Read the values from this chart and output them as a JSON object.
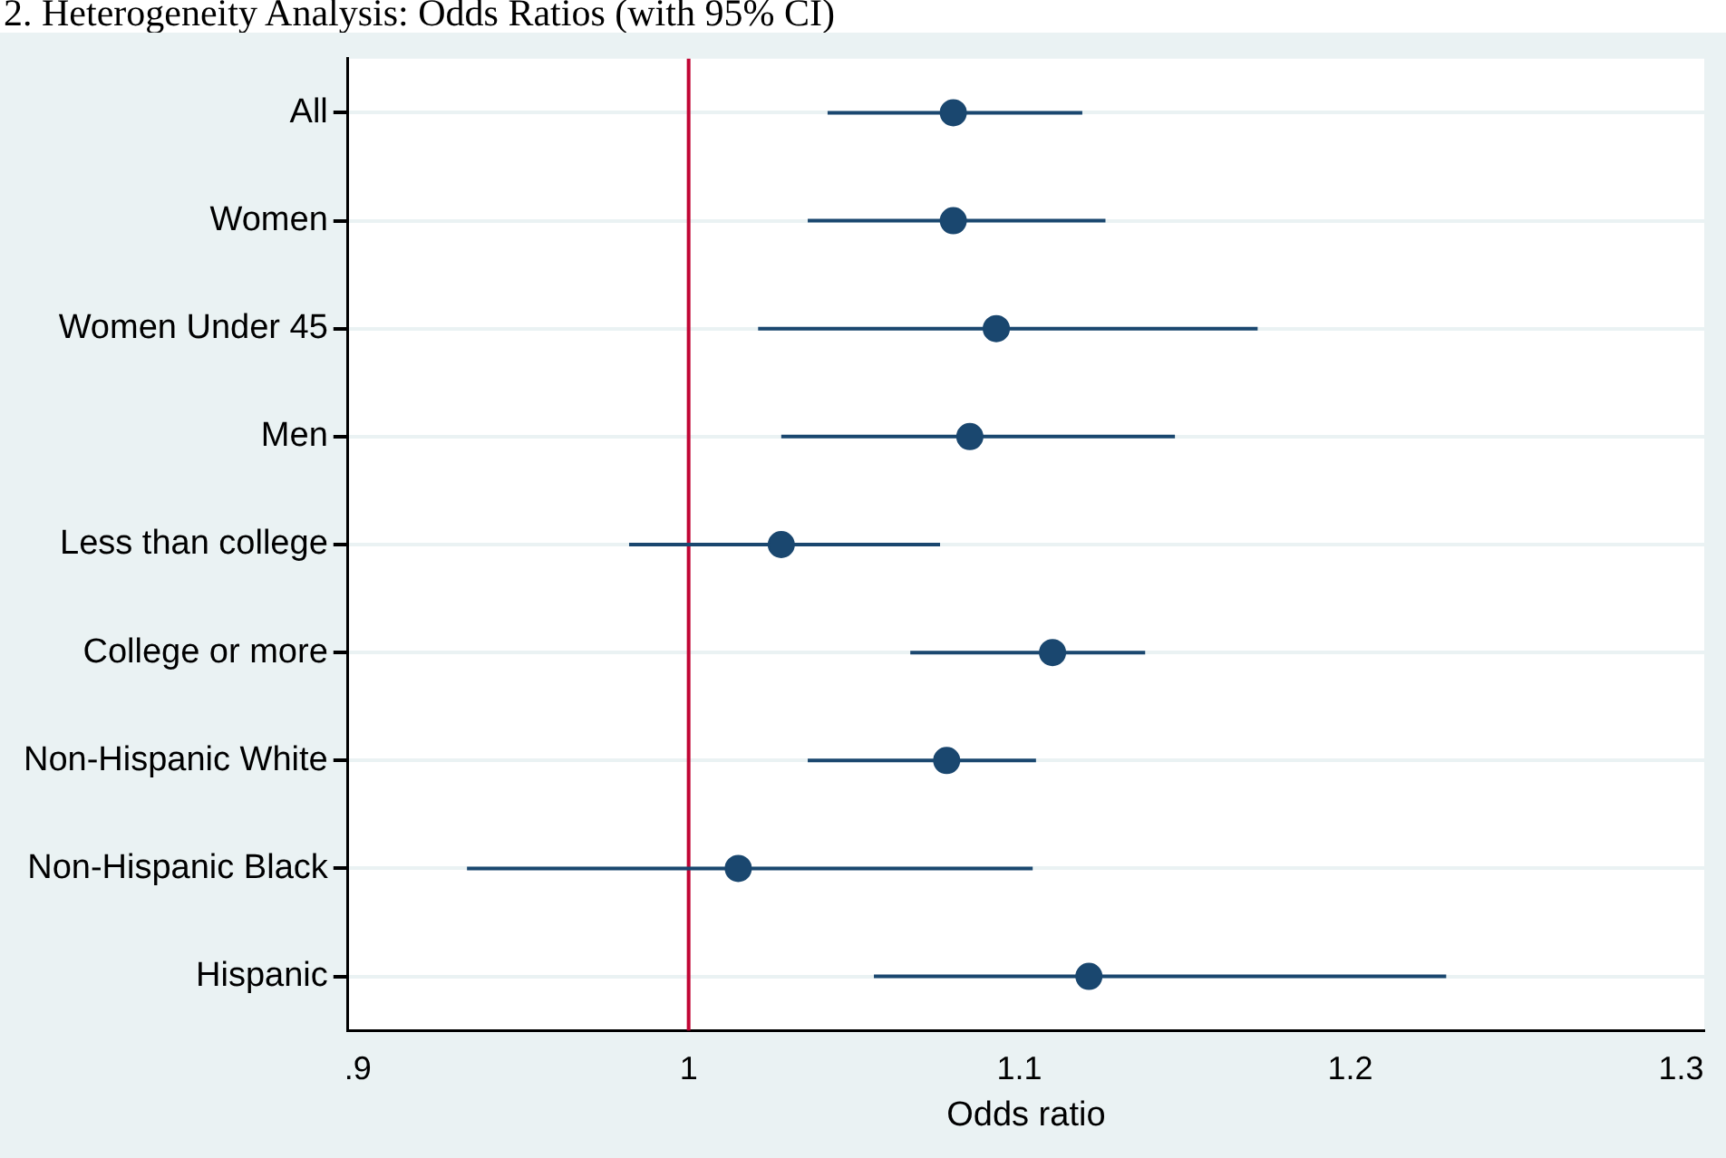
{
  "chart_data": {
    "type": "scatter",
    "title": "2. Heterogeneity Analysis: Odds Ratios (with 95% CI)",
    "xlabel": "Odds ratio",
    "categories": [
      "All",
      "Women",
      "Women Under 45",
      "Men",
      "Less than college",
      "College or more",
      "Non-Hispanic White",
      "Non-Hispanic Black",
      "Hispanic"
    ],
    "values": [
      1.08,
      1.08,
      1.093,
      1.085,
      1.028,
      1.11,
      1.078,
      1.015,
      1.121
    ],
    "errors": [
      [
        1.042,
        1.119
      ],
      [
        1.036,
        1.126
      ],
      [
        1.021,
        1.172
      ],
      [
        1.028,
        1.147
      ],
      [
        0.982,
        1.076
      ],
      [
        1.067,
        1.138
      ],
      [
        1.036,
        1.105
      ],
      [
        0.933,
        1.104
      ],
      [
        1.056,
        1.229
      ]
    ],
    "color": "#1a476f",
    "marker": "circle",
    "orientation": "horizontal",
    "xlim": [
      0.897,
      1.307
    ],
    "xticks": [
      {
        "value": 0.9,
        "label": ".9"
      },
      1,
      1.1,
      1.2,
      1.3
    ],
    "ref_lines": [
      {
        "axis": "x",
        "value": 1,
        "color": "#c10534"
      }
    ],
    "grid": "y",
    "legend": false
  }
}
